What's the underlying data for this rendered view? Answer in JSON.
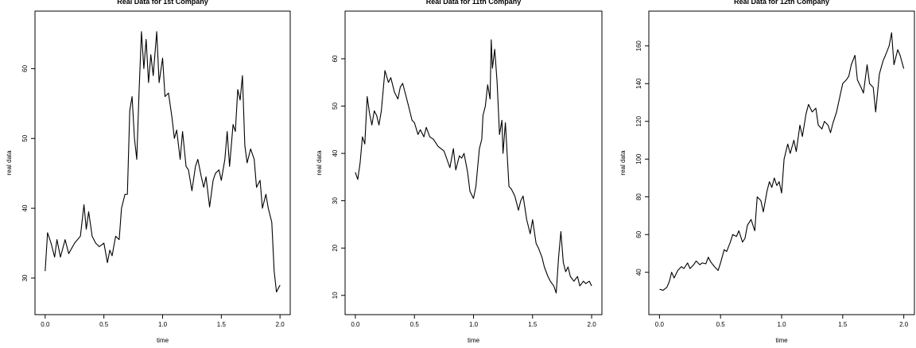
{
  "chart_data": [
    {
      "type": "line",
      "title": "Real Data for 1st Company",
      "xlabel": "time",
      "ylabel": "real data",
      "xlim": [
        0,
        2
      ],
      "ylim": [
        26.5,
        66.5
      ],
      "xticks": [
        "0.0",
        "0.5",
        "1.0",
        "1.5",
        "2.0"
      ],
      "yticks": [
        "30",
        "40",
        "50",
        "60"
      ],
      "grid": false,
      "series": [
        {
          "x": [
            0.0,
            0.02,
            0.05,
            0.08,
            0.1,
            0.13,
            0.17,
            0.2,
            0.25,
            0.3,
            0.33,
            0.35,
            0.37,
            0.4,
            0.43,
            0.46,
            0.5,
            0.53,
            0.55,
            0.57,
            0.6,
            0.63,
            0.65,
            0.68,
            0.7,
            0.72,
            0.74,
            0.76,
            0.78,
            0.8,
            0.82,
            0.84,
            0.86,
            0.88,
            0.9,
            0.92,
            0.95,
            0.97,
            1.0,
            1.02,
            1.05,
            1.08,
            1.1,
            1.12,
            1.15,
            1.17,
            1.2,
            1.22,
            1.25,
            1.28,
            1.3,
            1.33,
            1.35,
            1.37,
            1.4,
            1.43,
            1.45,
            1.48,
            1.5,
            1.53,
            1.55,
            1.57,
            1.6,
            1.62,
            1.64,
            1.66,
            1.68,
            1.7,
            1.72,
            1.75,
            1.78,
            1.8,
            1.83,
            1.85,
            1.88,
            1.9,
            1.93,
            1.95,
            1.97,
            2.0
          ],
          "y": [
            31,
            36.5,
            35,
            33,
            35.5,
            33,
            35.5,
            33.5,
            35,
            36,
            40.5,
            37,
            39.5,
            36,
            35,
            34.5,
            35,
            32.2,
            34,
            33.2,
            36,
            35.5,
            40,
            42,
            42,
            54,
            56,
            50,
            47,
            57,
            65.3,
            60,
            64.2,
            58,
            62,
            59,
            65.3,
            58,
            61.5,
            56,
            56.5,
            53,
            50,
            51.2,
            47,
            51,
            46,
            45.5,
            42.5,
            46,
            47,
            44.5,
            43,
            44.5,
            40.2,
            44,
            45,
            45.5,
            44,
            47,
            51,
            46,
            52,
            51,
            57,
            55.5,
            59,
            49,
            46.5,
            48.5,
            47,
            43,
            44,
            40,
            42,
            40,
            38,
            31,
            28,
            29
          ]
        }
      ]
    },
    {
      "type": "line",
      "title": "Real Data for 11th Company",
      "xlabel": "time",
      "ylabel": "real data",
      "xlim": [
        0,
        2
      ],
      "ylim": [
        8.5,
        67.5
      ],
      "xticks": [
        "0.0",
        "0.5",
        "1.0",
        "1.5",
        "2.0"
      ],
      "yticks": [
        "10",
        "20",
        "30",
        "40",
        "50",
        "60"
      ],
      "grid": false,
      "series": [
        {
          "x": [
            0.0,
            0.02,
            0.04,
            0.06,
            0.08,
            0.1,
            0.12,
            0.14,
            0.16,
            0.18,
            0.2,
            0.22,
            0.25,
            0.28,
            0.3,
            0.33,
            0.36,
            0.38,
            0.4,
            0.43,
            0.45,
            0.48,
            0.5,
            0.53,
            0.55,
            0.58,
            0.6,
            0.63,
            0.66,
            0.7,
            0.75,
            0.8,
            0.83,
            0.85,
            0.88,
            0.9,
            0.92,
            0.95,
            0.97,
            1.0,
            1.02,
            1.05,
            1.07,
            1.08,
            1.1,
            1.12,
            1.14,
            1.15,
            1.16,
            1.18,
            1.2,
            1.22,
            1.24,
            1.25,
            1.27,
            1.3,
            1.32,
            1.35,
            1.38,
            1.4,
            1.42,
            1.45,
            1.48,
            1.5,
            1.53,
            1.55,
            1.58,
            1.6,
            1.63,
            1.65,
            1.68,
            1.7,
            1.72,
            1.74,
            1.76,
            1.78,
            1.8,
            1.82,
            1.85,
            1.88,
            1.9,
            1.93,
            1.95,
            1.98,
            2.0
          ],
          "y": [
            36,
            34.5,
            38,
            43.5,
            42,
            52,
            48.5,
            46,
            49,
            48,
            46,
            49,
            57.5,
            55,
            56,
            53,
            51.5,
            54,
            54.8,
            52,
            50,
            47,
            46.5,
            44,
            45,
            43.5,
            45.5,
            43.5,
            43,
            41.5,
            40.5,
            37,
            41,
            36.5,
            39.5,
            39,
            40,
            36,
            32,
            30.5,
            33,
            41,
            43,
            48,
            50,
            54.5,
            51.5,
            64,
            58,
            62,
            55,
            44,
            47,
            40,
            46.5,
            33,
            32.5,
            31,
            28,
            30,
            31,
            26,
            23,
            26,
            21,
            20,
            18,
            16,
            14,
            13,
            12,
            10.5,
            18,
            23.5,
            17,
            15,
            16,
            14,
            13,
            14,
            12,
            13,
            12.5,
            13,
            12
          ]
        }
      ]
    },
    {
      "type": "line",
      "title": "Real Data for 12th Company",
      "xlabel": "time",
      "ylabel": "real data",
      "xlim": [
        0,
        2
      ],
      "ylim": [
        24,
        172
      ],
      "xticks": [
        "0.0",
        "0.5",
        "1.0",
        "1.5",
        "2.0"
      ],
      "yticks": [
        "40",
        "60",
        "80",
        "100",
        "120",
        "140",
        "160"
      ],
      "grid": false,
      "series": [
        {
          "x": [
            0.0,
            0.03,
            0.06,
            0.08,
            0.1,
            0.12,
            0.15,
            0.18,
            0.2,
            0.23,
            0.25,
            0.28,
            0.3,
            0.33,
            0.35,
            0.38,
            0.4,
            0.42,
            0.45,
            0.48,
            0.5,
            0.53,
            0.55,
            0.58,
            0.6,
            0.63,
            0.65,
            0.68,
            0.7,
            0.72,
            0.75,
            0.78,
            0.8,
            0.83,
            0.85,
            0.88,
            0.9,
            0.92,
            0.94,
            0.96,
            0.98,
            1.0,
            1.02,
            1.05,
            1.07,
            1.1,
            1.12,
            1.15,
            1.17,
            1.2,
            1.22,
            1.25,
            1.28,
            1.3,
            1.33,
            1.35,
            1.38,
            1.4,
            1.42,
            1.45,
            1.48,
            1.5,
            1.53,
            1.55,
            1.57,
            1.6,
            1.62,
            1.65,
            1.67,
            1.7,
            1.72,
            1.75,
            1.77,
            1.8,
            1.83,
            1.85,
            1.88,
            1.9,
            1.92,
            1.95,
            1.97,
            2.0
          ],
          "y": [
            31,
            30.5,
            32,
            35,
            40,
            37,
            41,
            43,
            42,
            45,
            42,
            44,
            46,
            44,
            45,
            44.5,
            48,
            45.5,
            43,
            41,
            45,
            52,
            51,
            56,
            60,
            59,
            62,
            56,
            58,
            65,
            68,
            62,
            80,
            78,
            72,
            83,
            88,
            85,
            90,
            86,
            88,
            82,
            100,
            108,
            103,
            110,
            104,
            118,
            112,
            124,
            129,
            125,
            127,
            118,
            116,
            120,
            118,
            114,
            119,
            125,
            134,
            140,
            142,
            144,
            150,
            155,
            142,
            138,
            135,
            150,
            140,
            138,
            125,
            145,
            152,
            155,
            160,
            167,
            150,
            158,
            155,
            148
          ]
        }
      ]
    }
  ]
}
